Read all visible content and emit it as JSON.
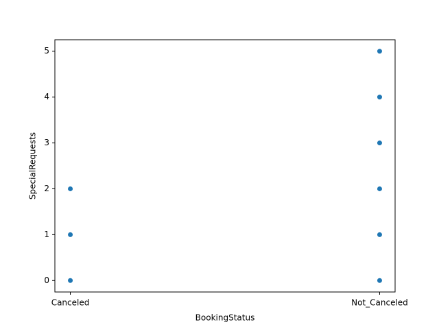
{
  "chart_data": {
    "type": "scatter",
    "x_label": "BookingStatus",
    "y_label": "SpecialRequests",
    "categories": [
      "Canceled",
      "Not_Canceled"
    ],
    "series": [
      {
        "color": "#1f77b4",
        "x": [
          "Canceled",
          "Canceled",
          "Canceled",
          "Not_Canceled",
          "Not_Canceled",
          "Not_Canceled",
          "Not_Canceled",
          "Not_Canceled",
          "Not_Canceled"
        ],
        "values": [
          0,
          1,
          2,
          0,
          1,
          2,
          3,
          4,
          5
        ]
      }
    ],
    "ylim": [
      -0.25,
      5.25
    ],
    "yticks": [
      0,
      1,
      2,
      3,
      4,
      5
    ],
    "grid": false
  }
}
